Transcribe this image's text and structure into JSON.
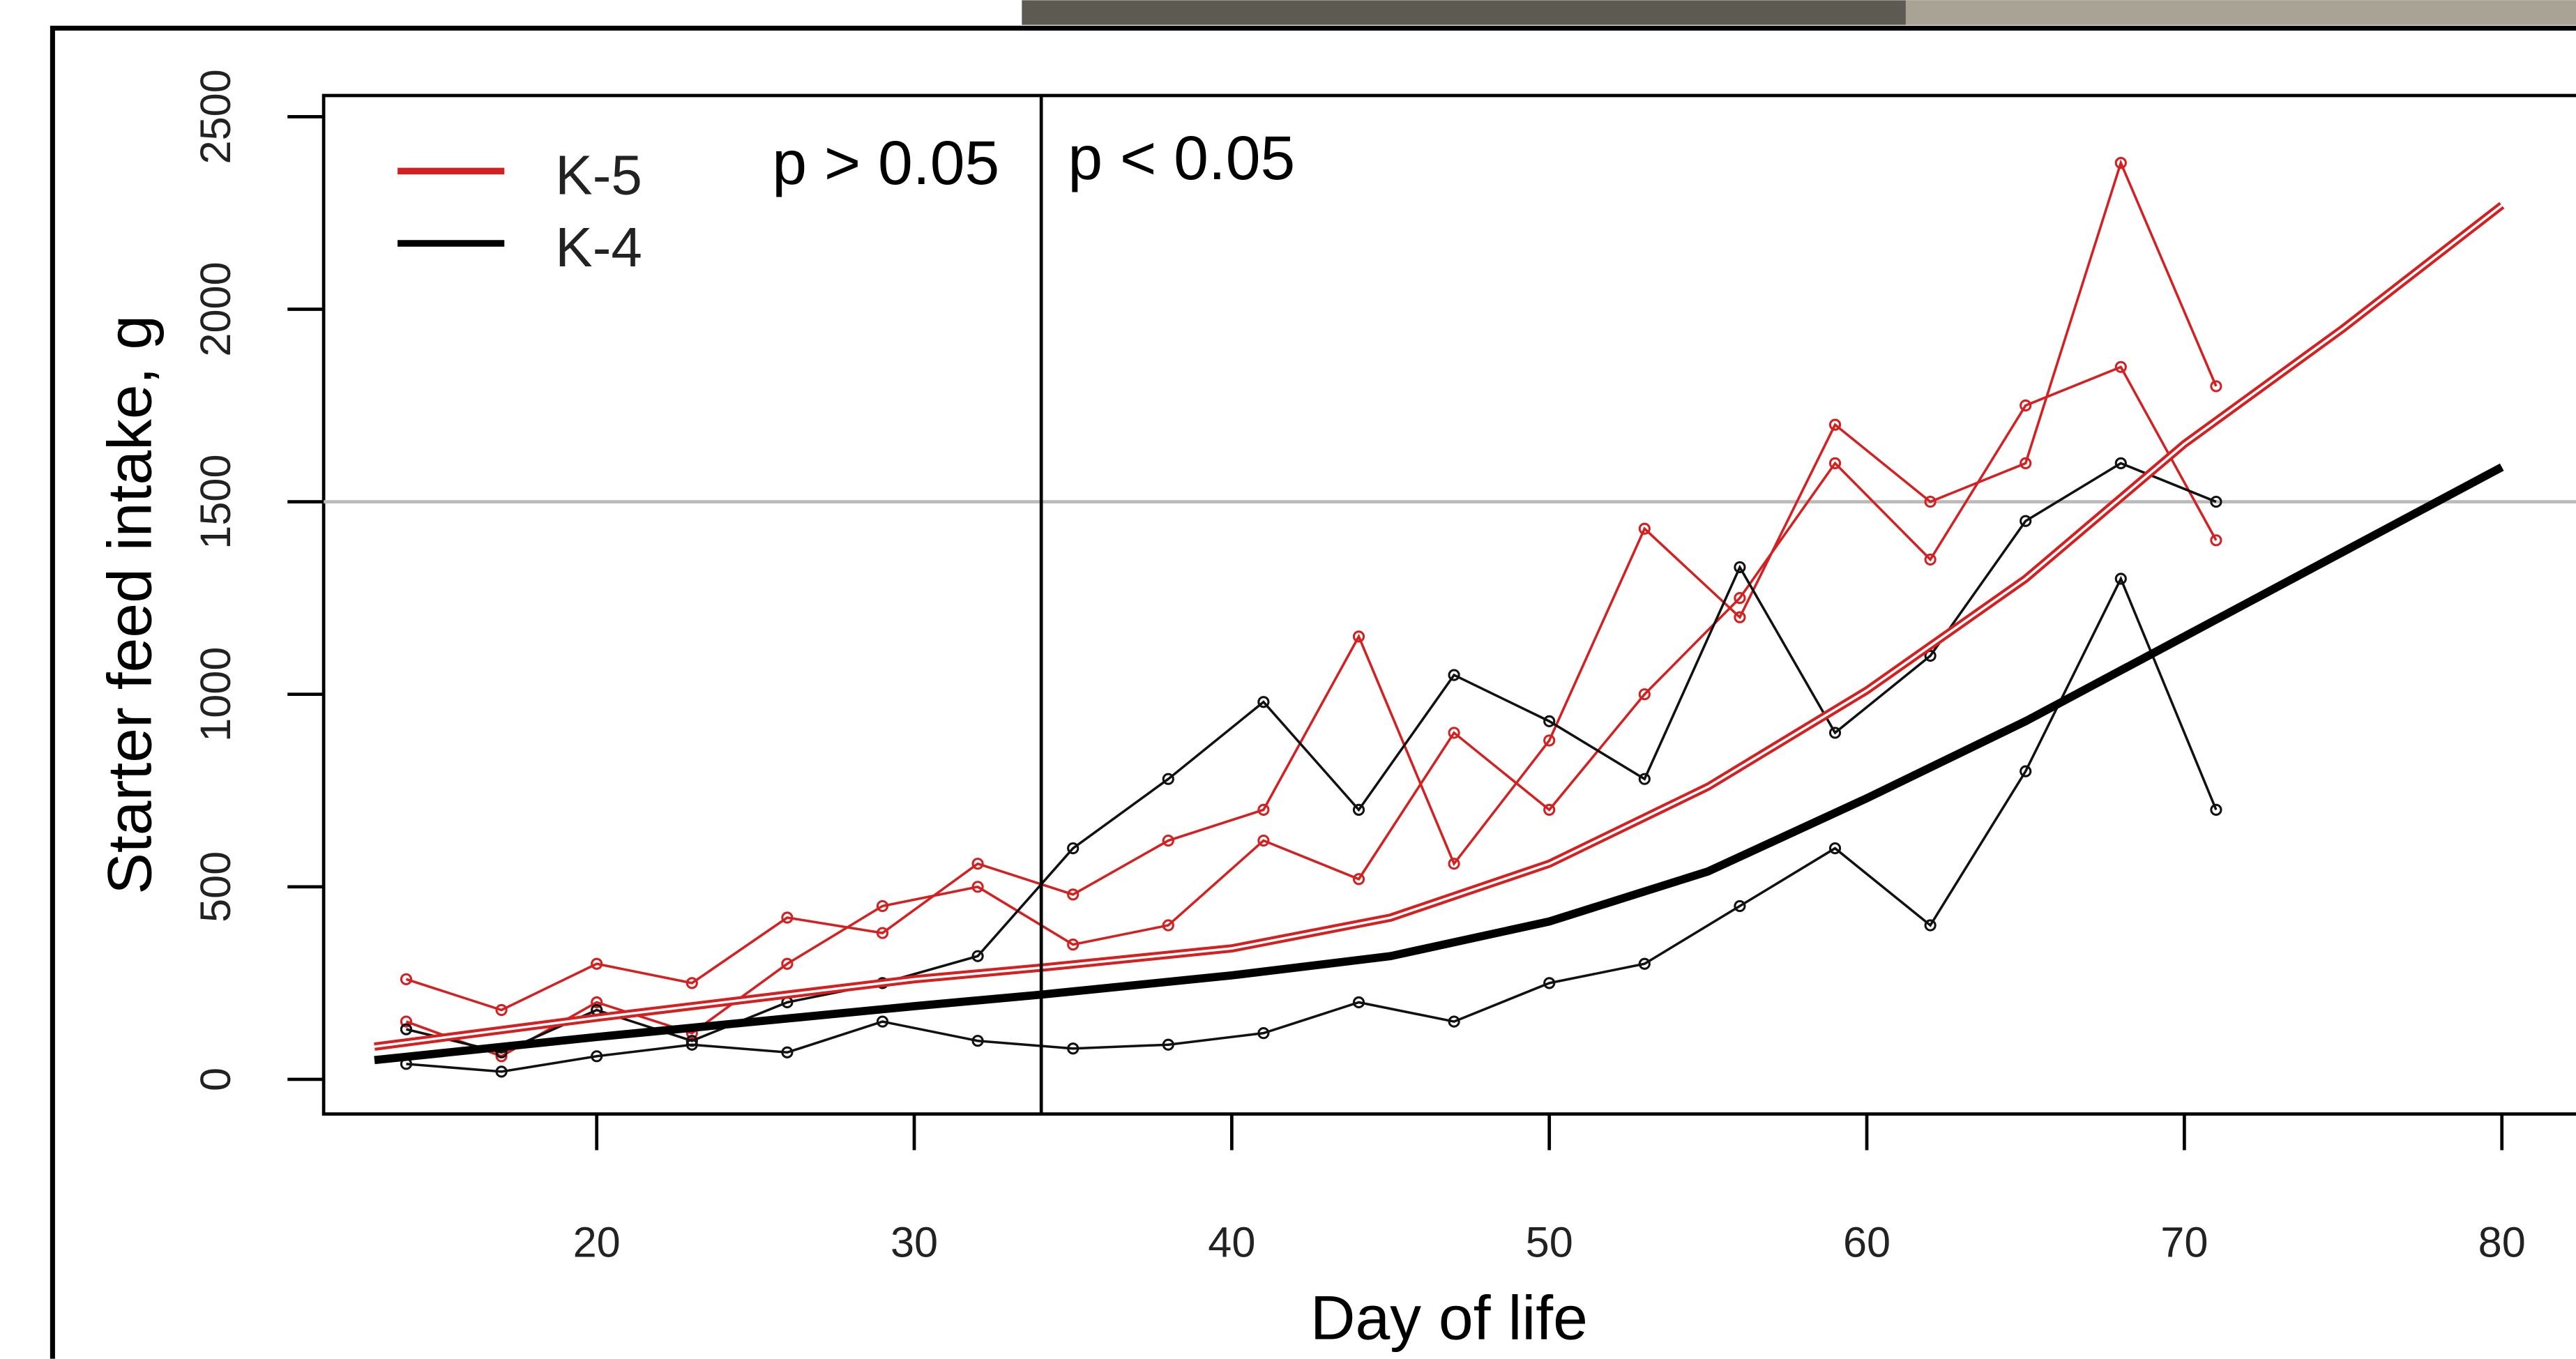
{
  "chart_data": {
    "type": "line",
    "xlabel": "Day of life",
    "ylabel": "Starter feed intake, g",
    "xlim": [
      11.4,
      82.8
    ],
    "ylim": [
      -90,
      2555
    ],
    "xticks": [
      20,
      30,
      40,
      50,
      60,
      70,
      80
    ],
    "yticks": [
      0,
      500,
      1000,
      1500,
      2000,
      2500
    ],
    "hline": 1500,
    "vline": 34,
    "annotations": [
      "p > 0.05",
      "p < 0.05"
    ],
    "legend": "upper left",
    "series": [
      {
        "color": "#d42020",
        "marker": true,
        "x": [
          14,
          17,
          20,
          23,
          26,
          29,
          32,
          35,
          38,
          41,
          44,
          47,
          50,
          53,
          56,
          59,
          62,
          65,
          68,
          71
        ],
        "values": [
          260,
          180,
          300,
          250,
          420,
          380,
          560,
          480,
          620,
          700,
          1150,
          560,
          880,
          1430,
          1200,
          1700,
          1500,
          1600,
          2380,
          1800
        ]
      },
      {
        "color": "#d42020",
        "marker": true,
        "x": [
          14,
          17,
          20,
          23,
          26,
          29,
          32,
          35,
          38,
          41,
          44,
          47,
          50,
          53,
          56,
          59,
          62,
          65,
          68,
          71
        ],
        "values": [
          150,
          60,
          200,
          120,
          300,
          450,
          500,
          350,
          400,
          620,
          520,
          900,
          700,
          1000,
          1250,
          1600,
          1350,
          1750,
          1850,
          1400
        ]
      },
      {
        "color": "#111111",
        "marker": true,
        "x": [
          14,
          17,
          20,
          23,
          26,
          29,
          32,
          35,
          38,
          41,
          44,
          47,
          50,
          53,
          56,
          59,
          62,
          65,
          68,
          71
        ],
        "values": [
          130,
          70,
          180,
          100,
          200,
          250,
          320,
          600,
          780,
          980,
          700,
          1050,
          930,
          780,
          1330,
          900,
          1100,
          1450,
          1600,
          1500
        ]
      },
      {
        "color": "#111111",
        "marker": true,
        "x": [
          14,
          17,
          20,
          23,
          26,
          29,
          32,
          35,
          38,
          41,
          44,
          47,
          50,
          53,
          56,
          59,
          62,
          65,
          68,
          71
        ],
        "values": [
          40,
          20,
          60,
          90,
          70,
          150,
          100,
          80,
          90,
          120,
          200,
          150,
          250,
          300,
          450,
          600,
          400,
          800,
          1300,
          700
        ]
      },
      {
        "name": "K-5",
        "color": "#d42020",
        "fit": true,
        "x": [
          13,
          20,
          30,
          34,
          40,
          45,
          50,
          55,
          60,
          65,
          70,
          75,
          80
        ],
        "values": [
          85,
          160,
          260,
          290,
          340,
          420,
          560,
          760,
          1010,
          1300,
          1650,
          1950,
          2270
        ]
      },
      {
        "name": "K-4",
        "color": "#000000",
        "fit": true,
        "x": [
          13,
          20,
          30,
          34,
          40,
          45,
          50,
          55,
          60,
          65,
          70,
          75,
          80
        ],
        "values": [
          50,
          110,
          190,
          220,
          270,
          320,
          410,
          540,
          730,
          930,
          1150,
          1370,
          1590
        ]
      }
    ]
  }
}
